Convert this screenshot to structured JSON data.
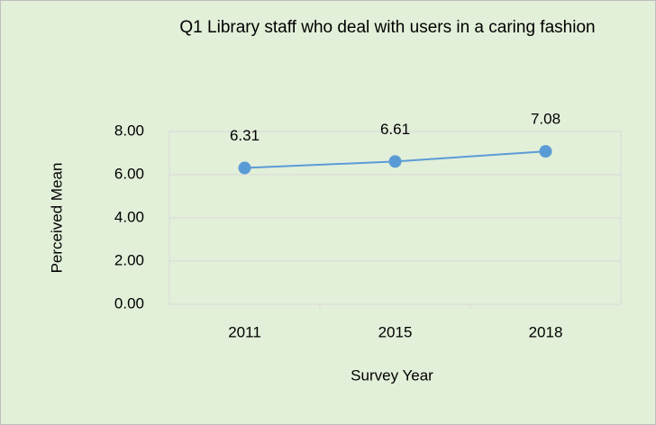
{
  "chart_data": {
    "type": "line",
    "title": "Q1  Library staff who deal with users in a caring fashion",
    "xlabel": "Survey Year",
    "ylabel": "Perceived Mean",
    "categories": [
      "2011",
      "2015",
      "2018"
    ],
    "series": [
      {
        "name": "Perceived Mean",
        "color": "#5b9bd5",
        "values": [
          6.31,
          6.61,
          7.08
        ]
      }
    ],
    "ylim": [
      0,
      8
    ],
    "yticks": [
      {
        "value": 0,
        "label": "0.00"
      },
      {
        "value": 2,
        "label": "2.00"
      },
      {
        "value": 4,
        "label": "4.00"
      },
      {
        "value": 6,
        "label": "6.00"
      },
      {
        "value": 8,
        "label": "8.00"
      }
    ],
    "grid": true
  }
}
